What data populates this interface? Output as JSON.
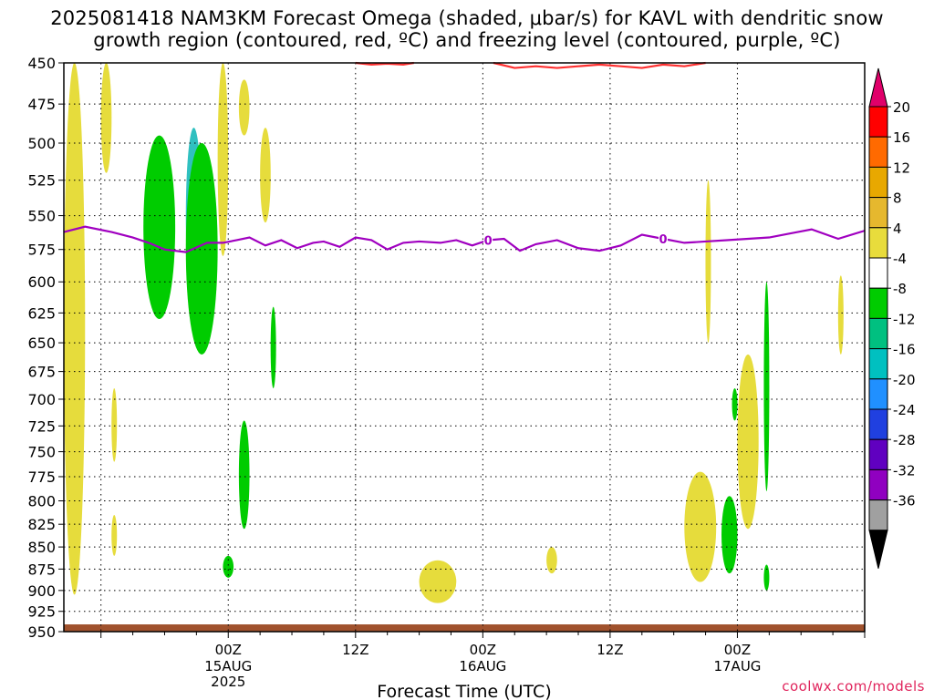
{
  "title": {
    "line1": "2025081418 NAM3KM Forecast Omega (shaded, μbar/s) for KAVL with dendritic snow",
    "line2": "growth region (contoured, red, ºC) and freezing level (contoured, purple, ºC)"
  },
  "credit": "coolwx.com/models",
  "chart_data": {
    "type": "time-height contour",
    "xlabel": "Forecast Time (UTC)",
    "ylabel": "",
    "x_range_hours": [
      -15.5,
      60
    ],
    "y_range_hPa": [
      450,
      950
    ],
    "y_scale": "log-pressure (inverted)",
    "y_ticks": [
      450,
      475,
      500,
      525,
      550,
      575,
      600,
      625,
      650,
      675,
      700,
      725,
      750,
      775,
      800,
      825,
      850,
      875,
      900,
      925,
      950
    ],
    "x_ticks": [
      {
        "hour": 0,
        "label": "00Z",
        "sub1": "15AUG",
        "sub2": "2025"
      },
      {
        "hour": 12,
        "label": "12Z",
        "sub1": "",
        "sub2": ""
      },
      {
        "hour": 24,
        "label": "00Z",
        "sub1": "16AUG",
        "sub2": ""
      },
      {
        "hour": 36,
        "label": "12Z",
        "sub1": "",
        "sub2": ""
      },
      {
        "hour": 48,
        "label": "00Z",
        "sub1": "17AUG",
        "sub2": ""
      }
    ],
    "grid": true,
    "colorbar": {
      "levels": [
        20,
        16,
        12,
        8,
        4,
        -4,
        -8,
        -12,
        -16,
        -20,
        -24,
        -28,
        -32,
        -36
      ],
      "colors": [
        "#ff0000",
        "#ff6a00",
        "#e8a800",
        "#e6b82e",
        "#e8dc3c",
        "#ffffff",
        "#00cc00",
        "#00c080",
        "#00c0c0",
        "#2090ff",
        "#2040e0",
        "#6000c0",
        "#9000c0",
        "#a0a0a0"
      ],
      "top_arrow_color": "#e0006a",
      "bottom_arrow_color": "#000000"
    },
    "freezing_level": {
      "color": "#a000c0",
      "label": "0",
      "label_hours": [
        24.5,
        41
      ],
      "hours": [
        -15.5,
        -13.5,
        -11,
        -9,
        -7.5,
        -6,
        -4,
        -2,
        -0.5,
        0.8,
        2,
        3.5,
        5,
        6.5,
        8,
        9,
        10.5,
        12,
        13.5,
        15,
        16.5,
        18,
        20,
        21.5,
        23,
        24.5,
        26,
        27.5,
        29,
        31,
        33,
        35,
        37,
        39,
        41,
        43,
        45,
        47,
        49,
        51,
        53,
        55,
        57.5,
        60
      ],
      "pressure_hPa": [
        562,
        558,
        562,
        566,
        570,
        575,
        577,
        570,
        570,
        568,
        566,
        572,
        568,
        574,
        570,
        569,
        573,
        566,
        568,
        575,
        570,
        569,
        570,
        568,
        572,
        568,
        567,
        576,
        571,
        568,
        574,
        576,
        572,
        564,
        567,
        570,
        569,
        568,
        567,
        566,
        563,
        560,
        567,
        561
      ]
    },
    "dgz_contour": {
      "color": "#ff3030",
      "segments": [
        {
          "hours": [
            12,
            13.5,
            15,
            16.5,
            17.5
          ],
          "pressure_hPa": [
            450,
            451,
            450.5,
            451,
            450
          ]
        },
        {
          "hours": [
            25,
            27,
            29,
            31,
            33,
            35,
            37,
            39,
            41,
            43,
            45
          ],
          "pressure_hPa": [
            450,
            453,
            452,
            453,
            452,
            451,
            452,
            453,
            451,
            452,
            450
          ]
        }
      ]
    },
    "omega_features": [
      {
        "value_range": "4 to 8",
        "hours": [
          -15.5,
          -13.5
        ],
        "pressure_hPa": [
          450,
          905
        ]
      },
      {
        "value_range": "4 to 8",
        "hours": [
          -12,
          -11
        ],
        "pressure_hPa": [
          450,
          520
        ]
      },
      {
        "value_range": "4 to 8",
        "hours": [
          -1,
          0
        ],
        "pressure_hPa": [
          450,
          580
        ]
      },
      {
        "value_range": "4 to 8",
        "hours": [
          1,
          2
        ],
        "pressure_hPa": [
          460,
          495
        ]
      },
      {
        "value_range": "4 to 8",
        "hours": [
          3,
          4
        ],
        "pressure_hPa": [
          490,
          555
        ]
      },
      {
        "value_range": "4 to 8",
        "hours": [
          -11,
          -10.5
        ],
        "pressure_hPa": [
          690,
          760
        ]
      },
      {
        "value_range": "4 to 8",
        "hours": [
          -11,
          -10.5
        ],
        "pressure_hPa": [
          815,
          860
        ]
      },
      {
        "value_range": "4 to 8",
        "hours": [
          18,
          21.5
        ],
        "pressure_hPa": [
          865,
          915
        ]
      },
      {
        "value_range": "4 to 8",
        "hours": [
          30,
          31
        ],
        "pressure_hPa": [
          850,
          880
        ]
      },
      {
        "value_range": "4 to 8",
        "hours": [
          43,
          46
        ],
        "pressure_hPa": [
          770,
          890
        ]
      },
      {
        "value_range": "4 to 8",
        "hours": [
          45,
          45.5
        ],
        "pressure_hPa": [
          525,
          650
        ]
      },
      {
        "value_range": "4 to 8",
        "hours": [
          48,
          50
        ],
        "pressure_hPa": [
          660,
          830
        ]
      },
      {
        "value_range": "4 to 8",
        "hours": [
          57.5,
          58
        ],
        "pressure_hPa": [
          595,
          660
        ]
      },
      {
        "value_range": "-8 to -4",
        "hours": [
          -8,
          -5
        ],
        "pressure_hPa": [
          495,
          630
        ]
      },
      {
        "value_range": "-16 to -12",
        "hours": [
          -4,
          -2.5
        ],
        "pressure_hPa": [
          490,
          620
        ]
      },
      {
        "value_range": "-8 to -4",
        "hours": [
          -4,
          -1
        ],
        "pressure_hPa": [
          500,
          660
        ]
      },
      {
        "value_range": "-8 to -4",
        "hours": [
          4,
          4.5
        ],
        "pressure_hPa": [
          620,
          690
        ]
      },
      {
        "value_range": "-8 to -4",
        "hours": [
          1,
          2
        ],
        "pressure_hPa": [
          720,
          830
        ]
      },
      {
        "value_range": "-8 to -4",
        "hours": [
          -0.5,
          0.5
        ],
        "pressure_hPa": [
          860,
          885
        ]
      },
      {
        "value_range": "-8 to -4",
        "hours": [
          46.5,
          48
        ],
        "pressure_hPa": [
          795,
          880
        ]
      },
      {
        "value_range": "-8 to -4",
        "hours": [
          50.5,
          51
        ],
        "pressure_hPa": [
          600,
          790
        ]
      },
      {
        "value_range": "-8 to -4",
        "hours": [
          47.5,
          48
        ],
        "pressure_hPa": [
          690,
          720
        ]
      },
      {
        "value_range": "-8 to -4",
        "hours": [
          50.5,
          51
        ],
        "pressure_hPa": [
          870,
          900
        ]
      }
    ],
    "terrain": {
      "color": "#a0522d",
      "top_hPa": 941
    }
  }
}
